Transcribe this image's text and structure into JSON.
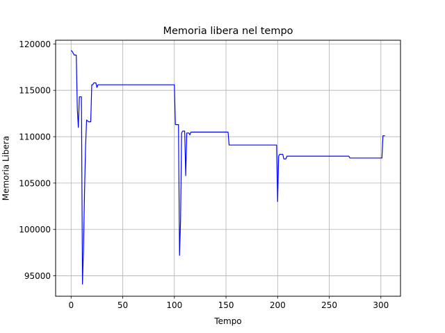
{
  "chart_data": {
    "type": "line",
    "title": "Memoria libera nel tempo",
    "xlabel": "Tempo",
    "ylabel": "Memoria Libera",
    "xlim": [
      -15,
      319
    ],
    "ylim": [
      92800,
      120400
    ],
    "grid": true,
    "xticks": [
      0,
      50,
      100,
      150,
      200,
      250,
      300
    ],
    "yticks": [
      95000,
      100000,
      105000,
      110000,
      115000,
      120000
    ],
    "series": [
      {
        "color": "#0000ff",
        "points": [
          [
            0,
            119300
          ],
          [
            1,
            119200
          ],
          [
            2,
            119000
          ],
          [
            3,
            118800
          ],
          [
            5,
            118800
          ],
          [
            6,
            113000
          ],
          [
            7,
            111000
          ],
          [
            8,
            114300
          ],
          [
            10,
            114300
          ],
          [
            11,
            94100
          ],
          [
            12,
            98000
          ],
          [
            13,
            104000
          ],
          [
            14,
            109000
          ],
          [
            15,
            111800
          ],
          [
            17,
            111600
          ],
          [
            19,
            111600
          ],
          [
            20,
            115600
          ],
          [
            21,
            115600
          ],
          [
            22,
            115800
          ],
          [
            24,
            115800
          ],
          [
            25,
            115300
          ],
          [
            26,
            115600
          ],
          [
            100,
            115600
          ],
          [
            101,
            111300
          ],
          [
            104,
            111300
          ],
          [
            105,
            97200
          ],
          [
            106,
            101000
          ],
          [
            107,
            110400
          ],
          [
            108,
            110600
          ],
          [
            110,
            110600
          ],
          [
            111,
            105800
          ],
          [
            112,
            110400
          ],
          [
            114,
            110400
          ],
          [
            115,
            110200
          ],
          [
            116,
            110500
          ],
          [
            152,
            110500
          ],
          [
            153,
            109100
          ],
          [
            199,
            109100
          ],
          [
            200,
            103000
          ],
          [
            201,
            107900
          ],
          [
            202,
            108100
          ],
          [
            205,
            108100
          ],
          [
            206,
            107600
          ],
          [
            208,
            107600
          ],
          [
            209,
            107900
          ],
          [
            269,
            107900
          ],
          [
            270,
            107700
          ],
          [
            301,
            107700
          ],
          [
            302,
            110100
          ],
          [
            304,
            110100
          ]
        ]
      }
    ]
  }
}
